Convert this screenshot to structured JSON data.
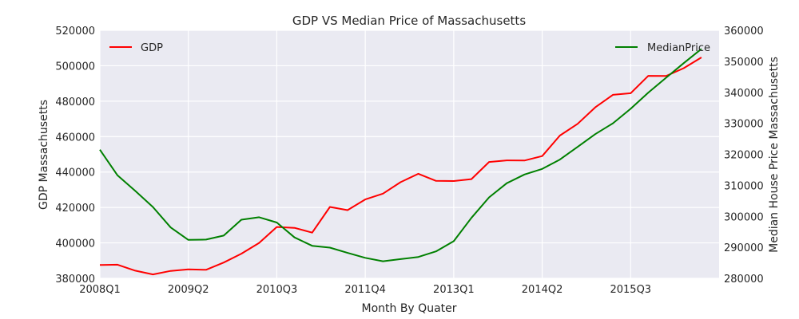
{
  "chart_data": {
    "type": "line",
    "title": "GDP VS Median Price of Massachusetts",
    "xlabel": "Month By Quater",
    "ylabel_left": "GDP Massachusetts",
    "ylabel_right": "Median House Price Massachusetts",
    "x": [
      "2008Q1",
      "2008Q2",
      "2008Q3",
      "2008Q4",
      "2009Q1",
      "2009Q2",
      "2009Q3",
      "2009Q4",
      "2010Q1",
      "2010Q2",
      "2010Q3",
      "2010Q4",
      "2011Q1",
      "2011Q2",
      "2011Q3",
      "2011Q4",
      "2012Q1",
      "2012Q2",
      "2012Q3",
      "2012Q4",
      "2013Q1",
      "2013Q2",
      "2013Q3",
      "2013Q4",
      "2014Q1",
      "2014Q2",
      "2014Q3",
      "2014Q4",
      "2015Q1",
      "2015Q2",
      "2015Q3",
      "2015Q4",
      "2016Q1",
      "2016Q2",
      "2016Q3"
    ],
    "x_tick_labels": [
      "2008Q1",
      "2009Q2",
      "2010Q3",
      "2011Q4",
      "2013Q1",
      "2014Q2",
      "2015Q3"
    ],
    "y_left_ticks": [
      "380000",
      "400000",
      "420000",
      "440000",
      "460000",
      "480000",
      "500000",
      "520000"
    ],
    "y_right_ticks": [
      "280000",
      "290000",
      "300000",
      "310000",
      "320000",
      "330000",
      "340000",
      "350000",
      "360000"
    ],
    "ylim_left": [
      380000,
      520000
    ],
    "ylim_right": [
      280000,
      360000
    ],
    "grid": true,
    "series": [
      {
        "name": "GDP",
        "axis": "left",
        "color": "#ff0000",
        "legend_position": "top-left",
        "values": [
          387500,
          387700,
          384300,
          382200,
          384200,
          385100,
          384800,
          388900,
          393900,
          400000,
          409000,
          408500,
          405800,
          420300,
          418500,
          424500,
          427800,
          434300,
          439000,
          435000,
          434900,
          436000,
          445700,
          446600,
          446500,
          449000,
          460600,
          467200,
          476500,
          483600,
          484500,
          494300,
          494200,
          498600,
          504700
        ]
      },
      {
        "name": "MedianPrice",
        "axis": "right",
        "color": "#008000",
        "legend_position": "top-right",
        "values": [
          321500,
          313200,
          308200,
          303000,
          296400,
          292400,
          292500,
          293800,
          298900,
          299700,
          298000,
          293200,
          290500,
          289900,
          288200,
          286600,
          285500,
          286200,
          286900,
          288700,
          292000,
          299500,
          306100,
          310700,
          313500,
          315300,
          318300,
          322400,
          326500,
          330000,
          334700,
          339900,
          344700,
          349400,
          354000
        ]
      }
    ]
  }
}
